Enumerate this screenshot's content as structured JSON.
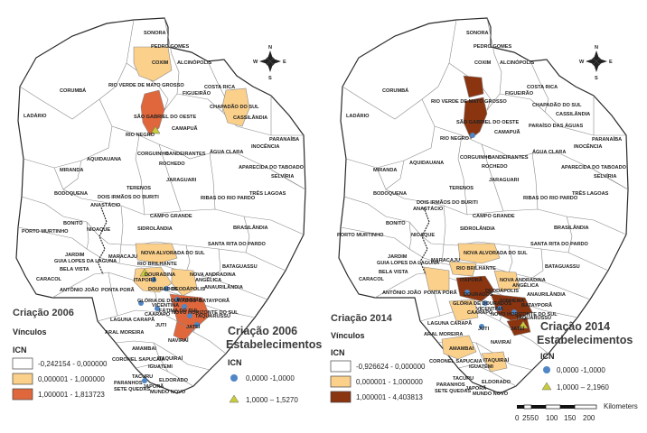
{
  "colors": {
    "class1": "#ffffff",
    "class2": "#fbd08a",
    "class3_2006": "#e0663c",
    "class3_2014": "#8b3410",
    "circle": "#4f86c6",
    "triangle": "#c8cc3a",
    "border": "#2a2a2a",
    "muni": "#8a8a8a"
  },
  "compass": {
    "n": "N",
    "s": "S",
    "e": "E",
    "w": "W"
  },
  "map_left": {
    "legend": {
      "title": "Criação 2006",
      "subtitle": "Vínculos",
      "icn": "ICN",
      "classes": [
        "-0,242154 - 0,000000",
        "0,000001 - 1,000000",
        "1,000001 - 1,813723"
      ]
    },
    "est_legend": {
      "title1": "Criação 2006",
      "title2": "Estabelecimentos",
      "icn": "ICN",
      "circle": "0,0000 -1,0000",
      "triangle": "1,0000 – 1,5270"
    }
  },
  "map_right": {
    "legend": {
      "title": "Criação 2014",
      "subtitle": "Vínculos",
      "icn": "ICN",
      "classes": [
        "-0,926624 - 0,000000",
        "0,000001 - 1,000000",
        "1,000001 - 4,403813"
      ]
    },
    "est_legend": {
      "title1": "Criação  2014",
      "title2": "Estabelecimentos",
      "icn": "ICN",
      "circle": "0,0000 -1,0000",
      "triangle": "1,0000 – 2,1960"
    }
  },
  "scalebar": {
    "unit": "Kilometers",
    "ticks": [
      "0",
      "25",
      "50",
      "100",
      "150",
      "200"
    ]
  },
  "municipalities": {
    "sonora": "SONORA",
    "pedro_gomes": "PEDRO GOMES",
    "coxim": "COXIM",
    "alcinopolis": "ALCINÓPOLIS",
    "corumba": "CORUMBÁ",
    "rio_verde": "RIO VERDE DE MATO GROSSO",
    "figueirao": "FIGUEIRÃO",
    "costa_rica": "COSTA RICA",
    "chapadao": "CHAPADÃO DO SUL",
    "ladario": "LADÁRIO",
    "sao_gabriel": "SÃO GABRIEL DO OESTE",
    "cassilandia": "CASSILÂNDIA",
    "paraiso": "PARAÍSO DAS ÁGUAS",
    "camapua": "CAMAPUÃ",
    "rio_negro": "RIO NEGRO",
    "paranaiba": "PARANAÍBA",
    "inocencia": "INOCÊNCIA",
    "corguinho": "CORGUINHO",
    "bandeirantes": "BANDEIRANTES",
    "agua_clara": "ÁGUA CLARA",
    "aquidauana": "AQUIDAUANA",
    "rochedo": "ROCHEDO",
    "aparecida": "APARECIDA DO TABOADO",
    "selviria": "SELVÍRIA",
    "miranda": "MIRANDA",
    "jaraguari": "JARAGUARI",
    "tres_lagoas": "TRÊS LAGOAS",
    "bodoquena": "BODOQUENA",
    "terenos": "TERENOS",
    "dois_irmaos": "DOIS IRMÃOS DO BURITI",
    "ribas": "RIBAS DO RIO PARDO",
    "anastacio": "ANASTÁCIO",
    "campo_grande": "CAMPO GRANDE",
    "bonito": "BONITO",
    "brasilandia": "BRASILÂNDIA",
    "sidrolandia": "SIDROLÂNDIA",
    "porto_murtinho": "PORTO MURTINHO",
    "nioaque": "NIOAQUE",
    "santa_rita": "SANTA RITA DO PARDO",
    "nova_alvorada": "NOVA ALVORADA DO SUL",
    "jardim": "JARDIM",
    "guia_lopes": "GUIA LOPES DA LAGUNA",
    "maracaju": "MARACAJU",
    "bela_vista": "BELA VISTA",
    "rio_brilhante": "RIO BRILHANTE",
    "bataguassu": "BATAGUASSU",
    "nova_andradina": "NOVA ANDRADINA",
    "caracol": "CARACOL",
    "ponta_pora": "PONTA PORÃ",
    "antonio_joao": "ANTÔNIO JOÃO",
    "itapora": "ITAPORÃ",
    "douradina": "DOURADINA",
    "dourados": "DOURADOS",
    "deodapolis": "DEODÁPOLIS",
    "angelica": "ANGÉLICA",
    "anaurilandia": "ANAURILÂNDIA",
    "batayporã": "BATAYPORÃ",
    "ivinhema": "IVINHEMA",
    "gloria": "GLÓRIA DE DOURADOS",
    "vicentina": "VICENTINA",
    "fatima": "FÁTIMA DO SUL",
    "laguna": "LAGUNA CARAPÃ",
    "caarapo": "CAARAPÓ",
    "jatei": "JATEÍ",
    "novo_horizonte": "NOVO HORIZONTE DO SUL",
    "taquarussu": "TAQUARUSSU",
    "juti": "JUTI",
    "aral_moreira": "ARAL MOREIRA",
    "navirai": "NAVIRAÍ",
    "itaquirai": "ITAQUIRAÍ",
    "amambai": "AMAMBAI",
    "coronel_sapucaia": "CORONEL SAPUCAIA",
    "iguatemi": "IGUATEMI",
    "tacuru": "TACURU",
    "paranhos": "PARANHOS",
    "sete_quedas": "SETE QUEDAS",
    "japora": "JAPORÃ",
    "eldorado": "ELDORADO",
    "mundo_novo": "MUNDO NOVO"
  }
}
